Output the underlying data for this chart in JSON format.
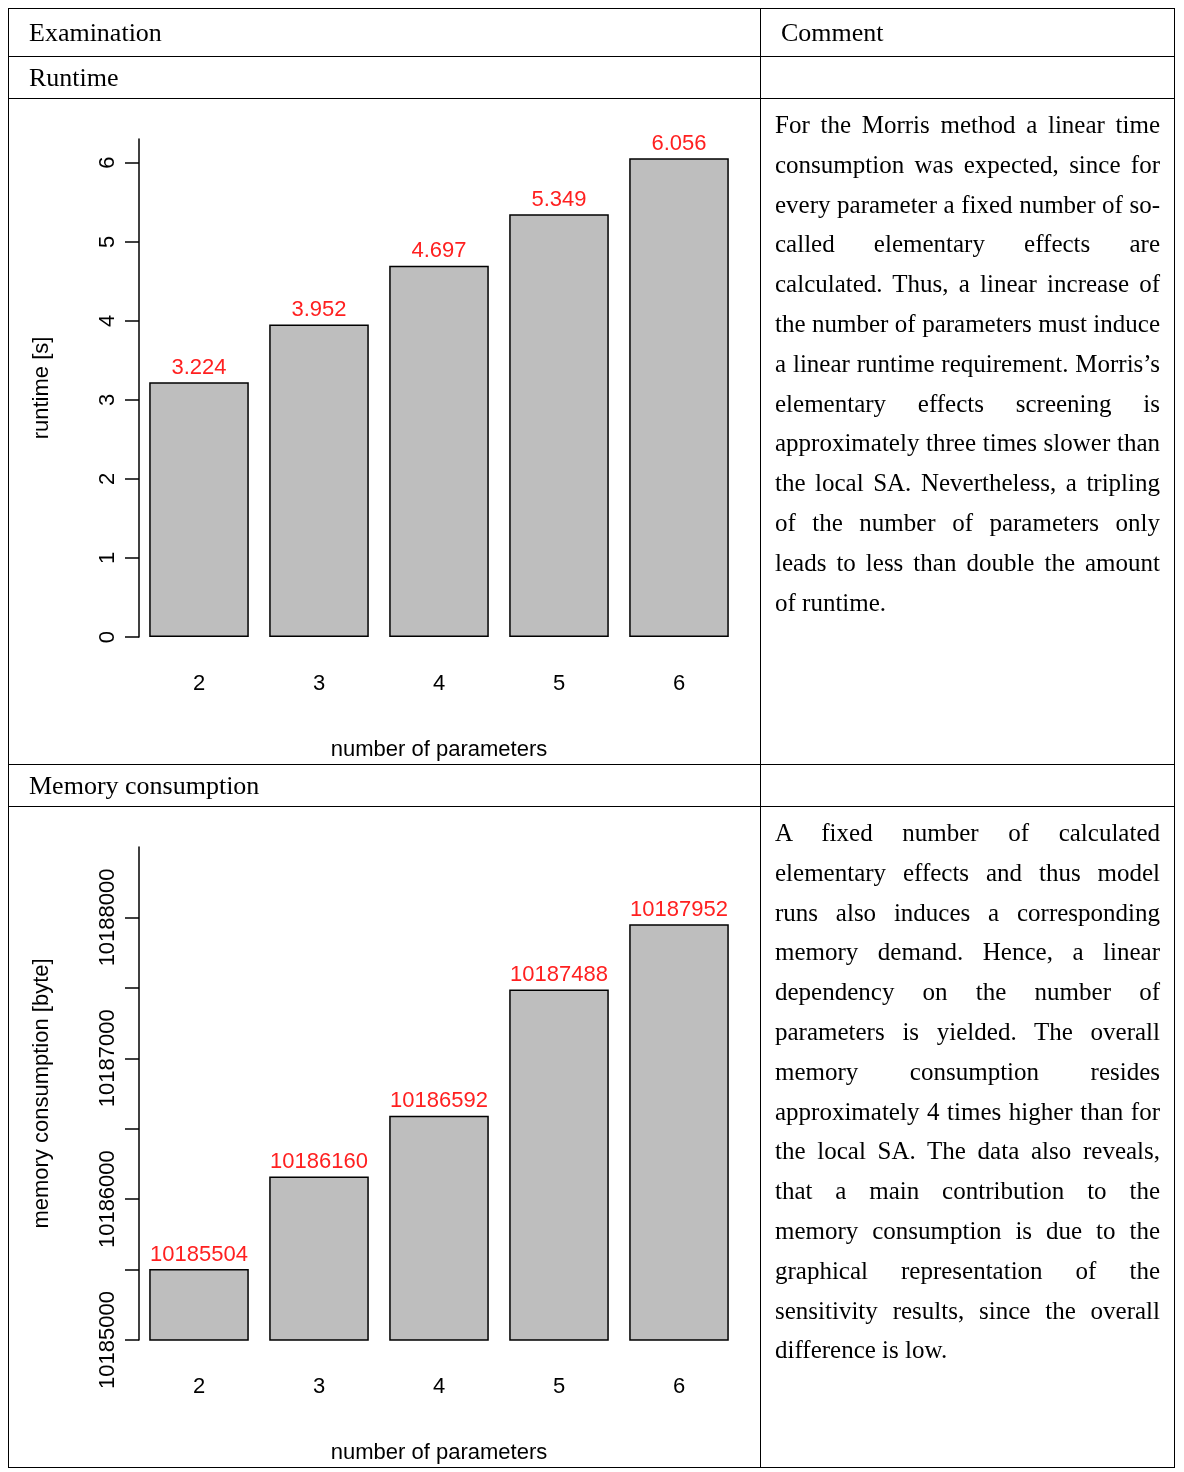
{
  "chart_data": [
    {
      "type": "other",
      "annotations": [
        "Examination",
        "Comment"
      ]
    },
    {
      "type": "bar",
      "title": "Runtime",
      "xlabel": "number of parameters",
      "ylabel": "runtime [s]",
      "categories": [
        "2",
        "3",
        "4",
        "5",
        "6"
      ],
      "values": [
        3.224,
        3.952,
        4.697,
        5.349,
        6.056
      ],
      "color": "#bebebe",
      "ylim": [
        0,
        6.3
      ],
      "yticks": [
        0,
        1,
        2,
        3,
        4,
        5,
        6
      ],
      "data_labels": true,
      "grid": false
    },
    {
      "type": "other",
      "annotations": [
        "For the Morris method a linear time consumption was expected, since for every parameter a fixed number of so-called elementary effects are calculated.  Thus, a linear increase of the number of parameters must induce a linear runtime requirement.  Morris’s elementary effects screening is approximately three times slower than the local SA. Nevertheless, a tripling of the number of parameters only leads to less than double the amount of runtime."
      ]
    },
    {
      "type": "bar",
      "title": "Memory consumption",
      "xlabel": "number of parameters",
      "ylabel": "memory consumption [byte]",
      "categories": [
        "2",
        "3",
        "4",
        "5",
        "6"
      ],
      "values": [
        10185504,
        10186160,
        10186592,
        10187488,
        10187952
      ],
      "color": "#bebebe",
      "ylim": [
        10185000,
        10188500
      ],
      "yticks": [
        10185000,
        {
          "value": 10185500,
          "label": null
        },
        10186000,
        {
          "value": 10186500,
          "label": null
        },
        10187000,
        {
          "value": 10187500,
          "label": null
        },
        10188000
      ],
      "data_labels": true,
      "grid": false
    },
    {
      "type": "other",
      "annotations": [
        "A fixed number of calculated elementary effects and thus model runs also induces a corresponding memory demand.  Hence, a linear dependency on the number of parameters is yielded.  The overall memory consumption resides approximately 4 times higher than for the local SA. The data also reveals, that a main contribution to the memory consumption is due to the graphical representation of the sensitivity results, since the overall difference is low."
      ]
    }
  ]
}
